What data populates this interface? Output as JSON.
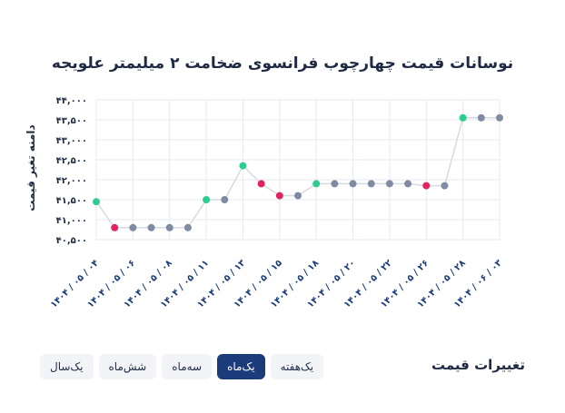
{
  "title": "نوسانات قیمت چهارچوب فرانسوی ضخامت ۲ میلیمتر علویجه",
  "footer_title": "تغییرات قیمت",
  "tabs": [
    {
      "label": "یک‌سال",
      "active": false
    },
    {
      "label": "شش‌ماه",
      "active": false
    },
    {
      "label": "سه‌ماه",
      "active": false
    },
    {
      "label": "یک‌ماه",
      "active": true
    },
    {
      "label": "یک‌هفته",
      "active": false
    }
  ],
  "colors": {
    "up": "#2ecc8f",
    "down": "#e0245e",
    "flat": "#7f8ba3",
    "line": "#d5dae3",
    "grid": "#e6e9ef"
  },
  "chart_data": {
    "type": "line",
    "title": "نوسانات قیمت چهارچوب فرانسوی ضخامت ۲ میلیمتر علویجه",
    "ylabel": "دامنه تغیر قیمت",
    "xlabel": "",
    "ylim": [
      40500,
      44000
    ],
    "yticks": [
      40500,
      41000,
      41500,
      42000,
      42500,
      43000,
      43500,
      44000
    ],
    "ytick_labels": [
      "۴۰,۵۰۰",
      "۴۱,۰۰۰",
      "۴۱,۵۰۰",
      "۴۲,۰۰۰",
      "۴۲,۵۰۰",
      "۴۳,۰۰۰",
      "۴۳,۵۰۰",
      "۴۴,۰۰۰"
    ],
    "xtick_labels": [
      "۱۴۰۴ / ۰۵ / ۰۴",
      "۱۴۰۴ / ۰۵ / ۰۶",
      "۱۴۰۴ / ۰۵ / ۰۸",
      "۱۴۰۴ / ۰۵ / ۱۱",
      "۱۴۰۴ / ۰۵ / ۱۳",
      "۱۴۰۴ / ۰۵ / ۱۵",
      "۱۴۰۴ / ۰۵ / ۱۸",
      "۱۴۰۴ / ۰۵ / ۲۰",
      "۱۴۰۴ / ۰۵ / ۲۲",
      "۱۴۰۴ / ۰۵ / ۲۶",
      "۱۴۰۴ / ۰۵ / ۲۸",
      "۱۴۰۴ / ۰۶ / ۰۳"
    ],
    "grid": true,
    "values": [
      41450,
      40800,
      40800,
      40800,
      40800,
      40800,
      41500,
      41500,
      42350,
      41900,
      41600,
      41600,
      41900,
      41900,
      41900,
      41900,
      41900,
      41900,
      41850,
      41850,
      43550,
      43550,
      43550
    ],
    "point_status": [
      "up",
      "down",
      "flat",
      "flat",
      "flat",
      "flat",
      "up",
      "flat",
      "up",
      "down",
      "down",
      "flat",
      "up",
      "flat",
      "flat",
      "flat",
      "flat",
      "flat",
      "down",
      "flat",
      "up",
      "flat",
      "flat"
    ]
  }
}
